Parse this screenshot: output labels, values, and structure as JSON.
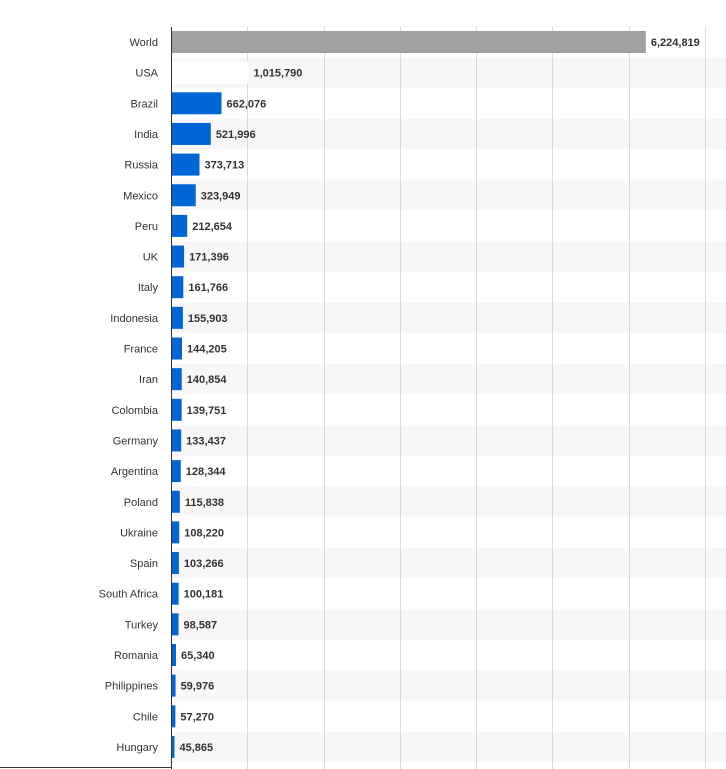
{
  "chart_data": {
    "type": "bar",
    "orientation": "horizontal",
    "categories": [
      "World",
      "USA",
      "Brazil",
      "India",
      "Russia",
      "Mexico",
      "Peru",
      "UK",
      "Italy",
      "Indonesia",
      "France",
      "Iran",
      "Colombia",
      "Germany",
      "Argentina",
      "Poland",
      "Ukraine",
      "Spain",
      "South Africa",
      "Turkey",
      "Romania",
      "Philippines",
      "Chile",
      "Hungary"
    ],
    "values": [
      6224819,
      1015790,
      662076,
      521996,
      373713,
      323949,
      212654,
      171396,
      161766,
      155903,
      144205,
      140854,
      139751,
      133437,
      128344,
      115838,
      108220,
      103266,
      100181,
      98587,
      65340,
      59976,
      57270,
      45865
    ],
    "value_labels": [
      "6,224,819",
      "1,015,790",
      "662,076",
      "521,996",
      "373,713",
      "323,949",
      "212,654",
      "171,396",
      "161,766",
      "155,903",
      "144,205",
      "140,854",
      "139,751",
      "133,437",
      "128,344",
      "115,838",
      "108,220",
      "103,266",
      "100,181",
      "98,587",
      "65,340",
      "59,976",
      "57,270",
      "45,865"
    ],
    "bar_colors": [
      "#a0a0a0",
      "#ffffff",
      "#0066d6",
      "#0066d6",
      "#0066d6",
      "#0066d6",
      "#0066d6",
      "#0066d6",
      "#0066d6",
      "#0066d6",
      "#0066d6",
      "#0066d6",
      "#0066d6",
      "#0066d6",
      "#0066d6",
      "#0066d6",
      "#0066d6",
      "#0066d6",
      "#0066d6",
      "#0066d6",
      "#0066d6",
      "#0066d6",
      "#0066d6",
      "#0066d6"
    ],
    "xlim": [
      0,
      7000000
    ],
    "grid": true,
    "legend": "none",
    "title": "",
    "xlabel": "",
    "ylabel": ""
  },
  "colors": {
    "primary": "#0066d6",
    "highlight": "#a0a0a0",
    "row_band": "#f7f7f7",
    "gridline": "#d9d9d9",
    "axis": "#333333"
  }
}
